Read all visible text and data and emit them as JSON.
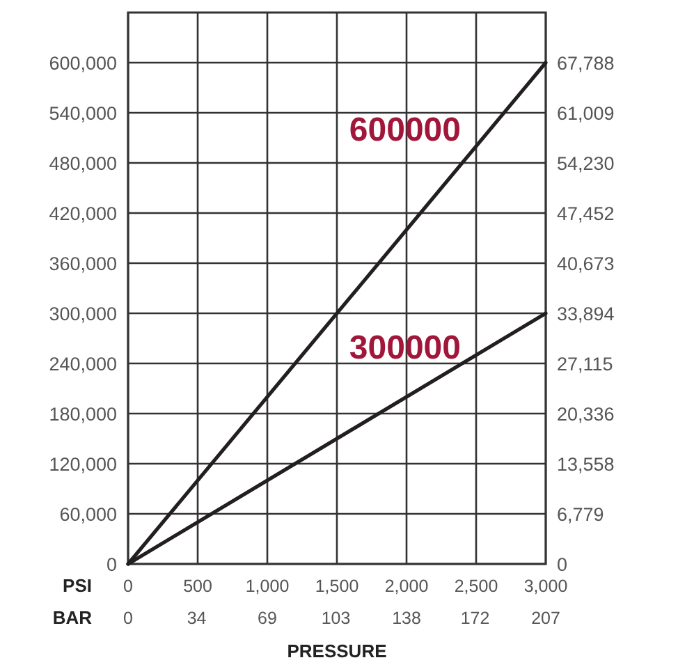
{
  "chart_data": {
    "type": "line",
    "xlabel": "PSI",
    "x2label": "BAR",
    "annotations": [
      "PRESSURE"
    ],
    "x": [
      0,
      3000
    ],
    "series": [
      {
        "name": "600000",
        "color": "#231f20",
        "values": [
          0,
          600000
        ]
      },
      {
        "name": "300000",
        "color": "#231f20",
        "values": [
          0,
          300000
        ]
      }
    ],
    "xlim": [
      0,
      3000
    ],
    "xticks": [
      0,
      {
        "value": 500,
        "label": "500"
      },
      {
        "value": 1000,
        "label": "1,000"
      },
      {
        "value": 1500,
        "label": "1,500"
      },
      {
        "value": 2000,
        "label": "2,000"
      },
      {
        "value": 2500,
        "label": "2,500"
      },
      {
        "value": 3000,
        "label": "3,000"
      }
    ],
    "x2lim": [
      0,
      207
    ],
    "x2ticks": [
      0,
      34,
      69,
      103,
      138,
      172,
      207
    ],
    "ylim": [
      0,
      660000
    ],
    "yticks": [
      0,
      {
        "value": 60000,
        "label": "60,000"
      },
      {
        "value": 120000,
        "label": "120,000"
      },
      {
        "value": 180000,
        "label": "180,000"
      },
      {
        "value": 240000,
        "label": "240,000"
      },
      {
        "value": 300000,
        "label": "300,000"
      },
      {
        "value": 360000,
        "label": "360,000"
      },
      {
        "value": 420000,
        "label": "420,000"
      },
      {
        "value": 480000,
        "label": "480,000"
      },
      {
        "value": 540000,
        "label": "540,000"
      },
      {
        "value": 600000,
        "label": "600,000"
      }
    ],
    "y2lim": [
      0,
      74567
    ],
    "y2ticks": [
      0,
      {
        "value": 6779,
        "label": "6,779"
      },
      {
        "value": 13558,
        "label": "13,558"
      },
      {
        "value": 20336,
        "label": "20,336"
      },
      {
        "value": 27115,
        "label": "27,115"
      },
      {
        "value": 33894,
        "label": "33,894"
      },
      {
        "value": 40673,
        "label": "40,673"
      },
      {
        "value": 47452,
        "label": "47,452"
      },
      {
        "value": 54230,
        "label": "54,230"
      },
      {
        "value": 61009,
        "label": "61,009"
      },
      {
        "value": 67788,
        "label": "67,788"
      }
    ],
    "grid": true,
    "legend": false,
    "marker": "none",
    "line_style": "solid"
  }
}
